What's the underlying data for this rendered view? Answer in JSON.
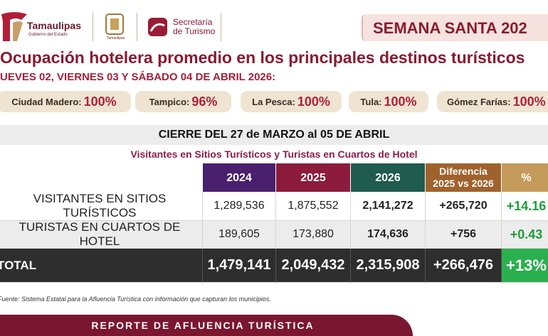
{
  "header": {
    "brand": "Tamaulipas",
    "brand_sub": "Gobierno del Estado",
    "emblem_sub": "Tamaulipas",
    "secretaria_line1": "Secretaría",
    "secretaria_line2": "de Turismo",
    "banner": "SEMANA SANTA 202"
  },
  "title": "Ocupación hotelera promedio en los principales destinos turísticos",
  "subtitle": "UEVES 02, VIERNES 03 Y SÁBADO 04 DE ABRIL 2026:",
  "occupancy": [
    {
      "label": "Ciudad Madero:",
      "value": "100%"
    },
    {
      "label": "Tampico:",
      "value": "96%"
    },
    {
      "label": "La Pesca:",
      "value": "100%"
    },
    {
      "label": "Tula:",
      "value": "100%"
    },
    {
      "label": "Gómez Farías:",
      "value": "100%"
    }
  ],
  "table": {
    "heading": "CIERRE DEL 27 de MARZO al 05 DE ABRIL",
    "subheading": "Visitantes en Sitios Turísticos y Turistas en Cuartos de Hotel",
    "columns": [
      "2024",
      "2025",
      "2026",
      "Diferencia 2025 vs 2026",
      "%"
    ],
    "rows": [
      [
        "VISITANTES EN SITIOS TURÍSTICOS",
        "1,289,536",
        "1,875,552",
        "2,141,272",
        "+265,720",
        "+14.16"
      ],
      [
        "TURISTAS EN CUARTOS DE HOTEL",
        "189,605",
        "173,880",
        "174,636",
        "+756",
        "+0.43"
      ],
      [
        "TOTAL",
        "1,479,141",
        "2,049,432",
        "2,315,908",
        "+266,476",
        "+13%"
      ]
    ]
  },
  "source": "Fuente: Sistema Estatal para la Afluencia Turística con información que capturan los municipios.",
  "footer": "REPORTE DE AFLUENCIA TURÍSTICA"
}
